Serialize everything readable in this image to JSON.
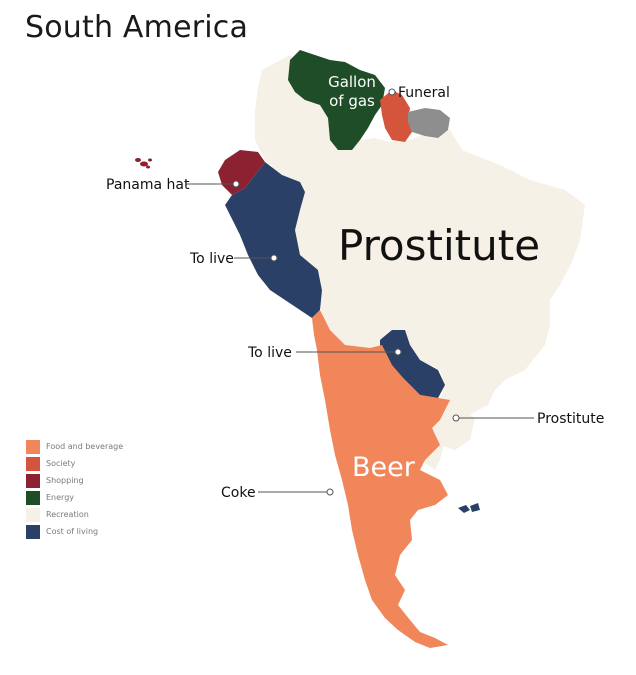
{
  "title": "South America",
  "colors": {
    "food": "#f0865a",
    "society": "#d5543c",
    "shopping": "#8b2131",
    "energy": "#1e4d28",
    "recreation": "#f6f1e6",
    "cost_of_living": "#2b4066",
    "gray": "#8e8e8e"
  },
  "labels": {
    "gallon_line1": "Gallon",
    "gallon_line2": "of gas",
    "funeral": "Funeral",
    "panama_hat": "Panama hat",
    "to_live_peru": "To live",
    "prostitute_big": "Prostitute",
    "to_live_paraguay": "To live",
    "prostitute_uruguay": "Prostitute",
    "beer": "Beer",
    "coke": "Coke"
  },
  "legend": [
    {
      "label": "Food and beverage",
      "color": "#f0865a"
    },
    {
      "label": "Society",
      "color": "#d5543c"
    },
    {
      "label": "Shopping",
      "color": "#8b2131"
    },
    {
      "label": "Energy",
      "color": "#1e4d28"
    },
    {
      "label": "Recreation",
      "color": "#f6f1e6"
    },
    {
      "label": "Cost of living",
      "color": "#2b4066"
    }
  ]
}
